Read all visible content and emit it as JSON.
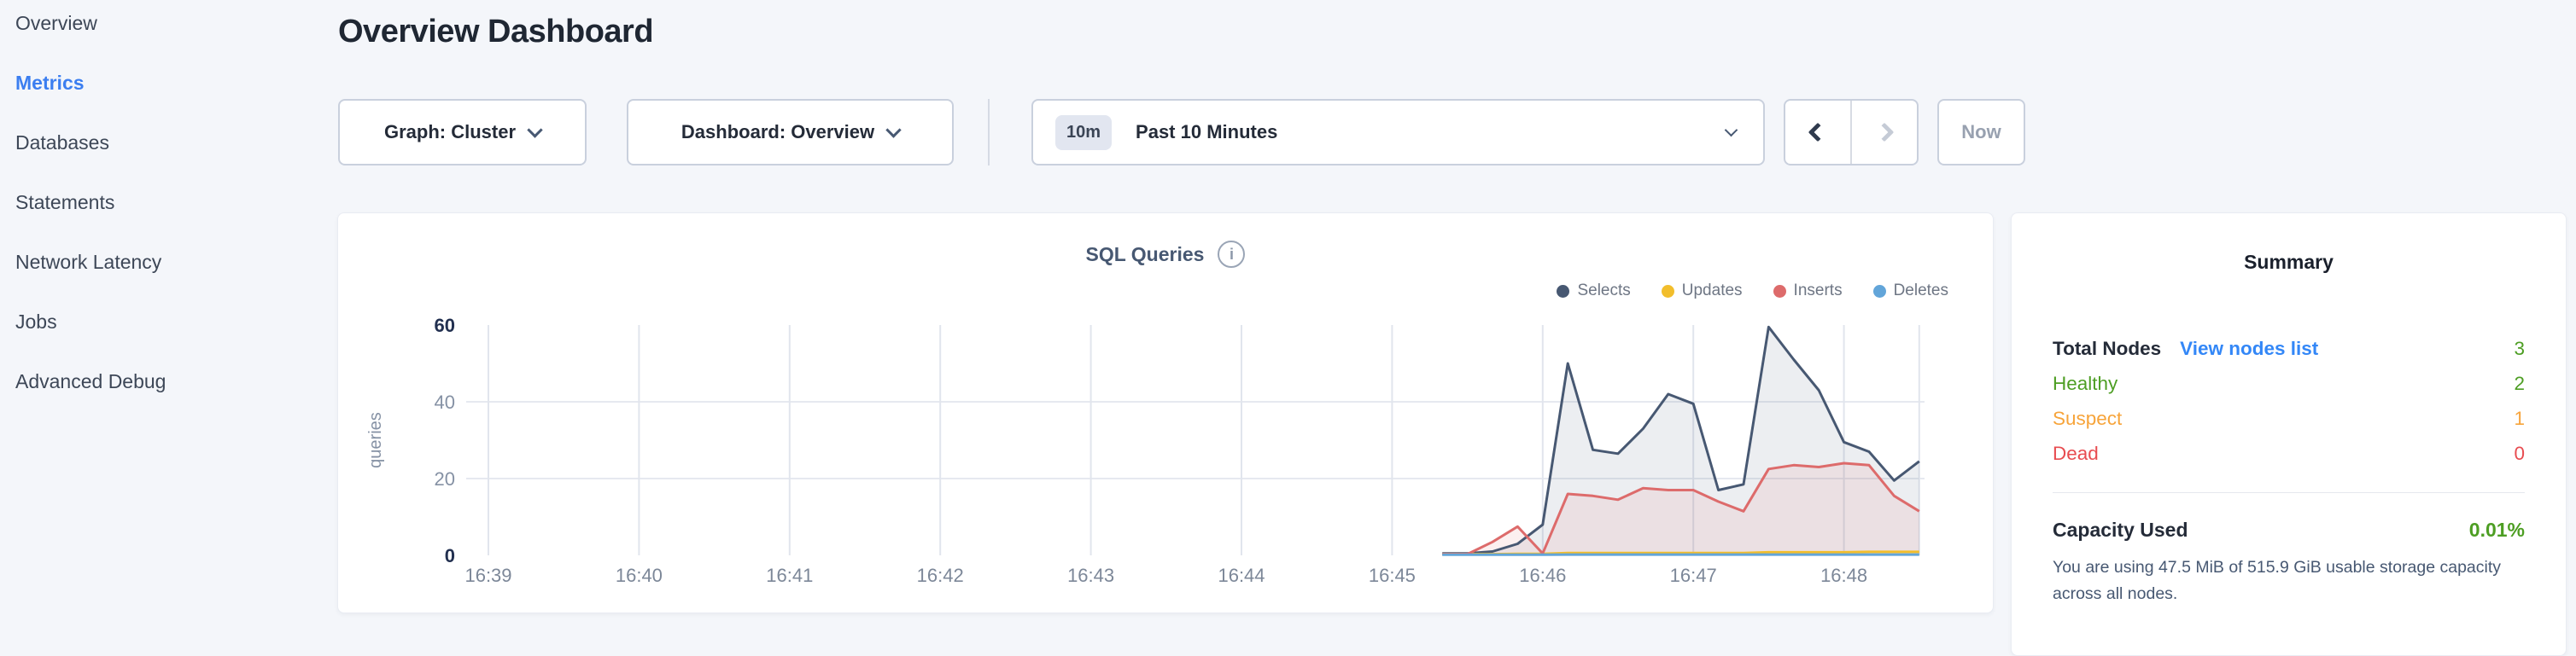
{
  "sidebar": {
    "items": [
      {
        "label": "Overview",
        "active": false
      },
      {
        "label": "Metrics",
        "active": true
      },
      {
        "label": "Databases",
        "active": false
      },
      {
        "label": "Statements",
        "active": false
      },
      {
        "label": "Network Latency",
        "active": false
      },
      {
        "label": "Jobs",
        "active": false
      },
      {
        "label": "Advanced Debug",
        "active": false
      }
    ]
  },
  "header": {
    "title": "Overview Dashboard"
  },
  "controls": {
    "graph_dropdown": "Graph: Cluster",
    "dashboard_dropdown": "Dashboard: Overview",
    "time_badge": "10m",
    "time_label": "Past 10 Minutes",
    "now_label": "Now"
  },
  "chart_card": {
    "title": "SQL Queries",
    "info_icon_glyph": "i"
  },
  "chart_data": {
    "type": "area",
    "title": "SQL Queries",
    "ylabel": "queries",
    "grid": true,
    "legend_position": "top-right",
    "ylim": [
      0,
      60
    ],
    "y_ticks": [
      0,
      20,
      40,
      60
    ],
    "x_ticks": [
      "16:39",
      "16:40",
      "16:41",
      "16:42",
      "16:43",
      "16:44",
      "16:45",
      "16:46",
      "16:47",
      "16:48"
    ],
    "x_domain": [
      "16:39:00",
      "16:48:30"
    ],
    "x": [
      "16:45:20",
      "16:45:30",
      "16:45:40",
      "16:45:50",
      "16:46:00",
      "16:46:10",
      "16:46:20",
      "16:46:30",
      "16:46:40",
      "16:46:50",
      "16:47:00",
      "16:47:10",
      "16:47:20",
      "16:47:30",
      "16:47:40",
      "16:47:50",
      "16:48:00",
      "16:48:10",
      "16:48:20",
      "16:48:30"
    ],
    "series": [
      {
        "name": "Selects",
        "color": "#475872",
        "values": [
          0.5,
          0.5,
          1,
          3,
          8,
          50,
          27.5,
          26.5,
          33,
          42,
          39.5,
          17,
          18.5,
          59.5,
          51,
          43,
          29.5,
          27,
          19.5,
          24.5
        ]
      },
      {
        "name": "Updates",
        "color": "#f2be2c",
        "values": [
          0.3,
          0.3,
          0.3,
          0.4,
          0.4,
          0.6,
          0.6,
          0.6,
          0.6,
          0.6,
          0.6,
          0.6,
          0.6,
          0.8,
          0.8,
          0.8,
          0.8,
          0.9,
          0.9,
          0.9
        ]
      },
      {
        "name": "Inserts",
        "color": "#dd6b6b",
        "values": [
          0.3,
          0.3,
          3.5,
          7.5,
          0.5,
          16,
          15.5,
          14.5,
          17.5,
          17,
          17,
          14,
          11.5,
          22.5,
          23.5,
          23,
          24,
          23.5,
          15.5,
          11.5
        ]
      },
      {
        "name": "Deletes",
        "color": "#62a5d9",
        "values": [
          0.15,
          0.15,
          0.15,
          0.15,
          0.15,
          0.2,
          0.2,
          0.2,
          0.2,
          0.2,
          0.2,
          0.2,
          0.2,
          0.2,
          0.2,
          0.2,
          0.2,
          0.2,
          0.2,
          0.2
        ]
      }
    ]
  },
  "summary": {
    "title": "Summary",
    "rows": [
      {
        "label": "Total Nodes",
        "link": "View nodes list",
        "value": "3",
        "label_color": "#242b38",
        "value_color": "#4d9e23"
      },
      {
        "label": "Healthy",
        "value": "2",
        "label_color": "#4d9e23",
        "value_color": "#4d9e23"
      },
      {
        "label": "Suspect",
        "value": "1",
        "label_color": "#f7a43a",
        "value_color": "#f7a43a"
      },
      {
        "label": "Dead",
        "value": "0",
        "label_color": "#e84c50",
        "value_color": "#e84c50"
      }
    ],
    "capacity": {
      "label": "Capacity Used",
      "value": "0.01%",
      "value_color": "#4d9e23"
    },
    "description": "You are using 47.5 MiB of 515.9 GiB usable storage capacity across all nodes.",
    "colors": {
      "link_blue": "#3387f7",
      "green": "#4d9e23",
      "orange": "#f7a43a",
      "red": "#e84c50"
    }
  }
}
